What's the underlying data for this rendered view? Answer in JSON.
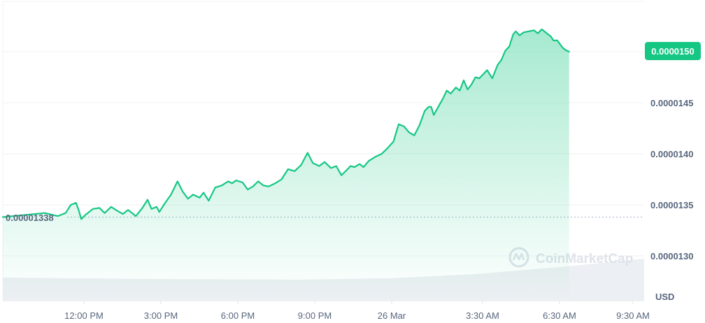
{
  "chart_data": {
    "type": "area",
    "currency": "USD",
    "x_ticks": [
      "12:00 PM",
      "3:00 PM",
      "6:00 PM",
      "9:00 PM",
      "26 Mar",
      "3:30 AM",
      "6:30 AM",
      "9:30 AM"
    ],
    "y_ticks": [
      "0.0000130",
      "0.0000135",
      "0.0000140",
      "0.0000145",
      "0.0000150"
    ],
    "ylim": [
      1.27e-05,
      1.55e-05
    ],
    "current_price_label": "0.0000150",
    "current_price": 1.5e-05,
    "start_price_label": "0.00001338",
    "start_price": 1.338e-05,
    "watermark": "CoinMarketCap",
    "colors": {
      "line": "#16c784",
      "area_fill": "#16c784",
      "price_tag": "#16c784",
      "axis_text": "#58667e",
      "grid": "#eff2f5",
      "volume": "#eff2f5"
    },
    "series": [
      {
        "hours": [
          -1.8,
          -1.1,
          -0.6,
          -0.3,
          -0.1,
          0.1,
          0.2,
          0.3,
          0.45,
          0.55,
          0.75,
          1.0,
          1.2,
          1.45,
          1.7,
          1.9,
          2.1,
          2.4,
          2.65,
          2.85,
          3.0,
          3.2,
          3.3,
          3.5,
          3.75,
          4.0,
          4.2,
          4.4,
          4.6,
          4.85,
          5.0,
          5.2,
          5.45,
          5.7,
          5.95,
          6.1,
          6.25,
          6.5,
          6.7,
          6.9,
          7.1,
          7.3,
          7.5,
          7.75,
          8.0,
          8.25,
          8.5,
          8.75,
          9.0,
          9.2,
          9.45,
          9.65,
          9.9,
          10.1,
          10.3,
          10.5,
          10.65,
          10.8,
          11.0,
          11.15,
          11.35,
          11.6,
          11.85,
          12.05,
          12.3,
          12.5,
          12.7,
          12.9,
          13.1,
          13.3,
          13.5,
          13.65,
          13.75,
          13.85,
          14.0,
          14.2,
          14.35,
          14.5,
          14.7,
          14.85,
          15.0,
          15.15,
          15.3,
          15.45,
          15.6,
          15.75,
          15.9,
          16.1,
          16.3,
          16.45,
          16.6,
          16.75,
          16.9,
          17.0,
          17.15,
          17.3,
          17.5,
          17.7,
          17.85,
          18.0,
          18.2,
          18.35,
          18.45,
          18.6,
          18.8,
          18.9,
          19.05
        ],
        "values": [
          1.338e-05,
          1.342e-05,
          1.339e-05,
          1.342e-05,
          1.35e-05,
          1.352e-05,
          1.345e-05,
          1.336e-05,
          1.34e-05,
          1.342e-05,
          1.346e-05,
          1.347e-05,
          1.342e-05,
          1.348e-05,
          1.344e-05,
          1.341e-05,
          1.345e-05,
          1.339e-05,
          1.347e-05,
          1.355e-05,
          1.346e-05,
          1.348e-05,
          1.343e-05,
          1.351e-05,
          1.36e-05,
          1.373e-05,
          1.363e-05,
          1.356e-05,
          1.36e-05,
          1.357e-05,
          1.362e-05,
          1.354e-05,
          1.367e-05,
          1.369e-05,
          1.373e-05,
          1.371e-05,
          1.374e-05,
          1.372e-05,
          1.365e-05,
          1.368e-05,
          1.373e-05,
          1.369e-05,
          1.368e-05,
          1.371e-05,
          1.375e-05,
          1.385e-05,
          1.383e-05,
          1.389e-05,
          1.401e-05,
          1.391e-05,
          1.388e-05,
          1.392e-05,
          1.386e-05,
          1.388e-05,
          1.379e-05,
          1.384e-05,
          1.388e-05,
          1.387e-05,
          1.39e-05,
          1.387e-05,
          1.393e-05,
          1.397e-05,
          1.4e-05,
          1.405e-05,
          1.412e-05,
          1.429e-05,
          1.427e-05,
          1.421e-05,
          1.418e-05,
          1.428e-05,
          1.442e-05,
          1.446e-05,
          1.446e-05,
          1.438e-05,
          1.445e-05,
          1.454e-05,
          1.462e-05,
          1.459e-05,
          1.465e-05,
          1.462e-05,
          1.472e-05,
          1.463e-05,
          1.468e-05,
          1.475e-05,
          1.474e-05,
          1.478e-05,
          1.482e-05,
          1.474e-05,
          1.487e-05,
          1.492e-05,
          1.501e-05,
          1.505e-05,
          1.517e-05,
          1.52e-05,
          1.516e-05,
          1.519e-05,
          1.52e-05,
          1.521e-05,
          1.518e-05,
          1.522e-05,
          1.518e-05,
          1.515e-05,
          1.511e-05,
          1.511e-05,
          1.504e-05,
          1.502e-05,
          1.5e-05
        ]
      }
    ]
  }
}
